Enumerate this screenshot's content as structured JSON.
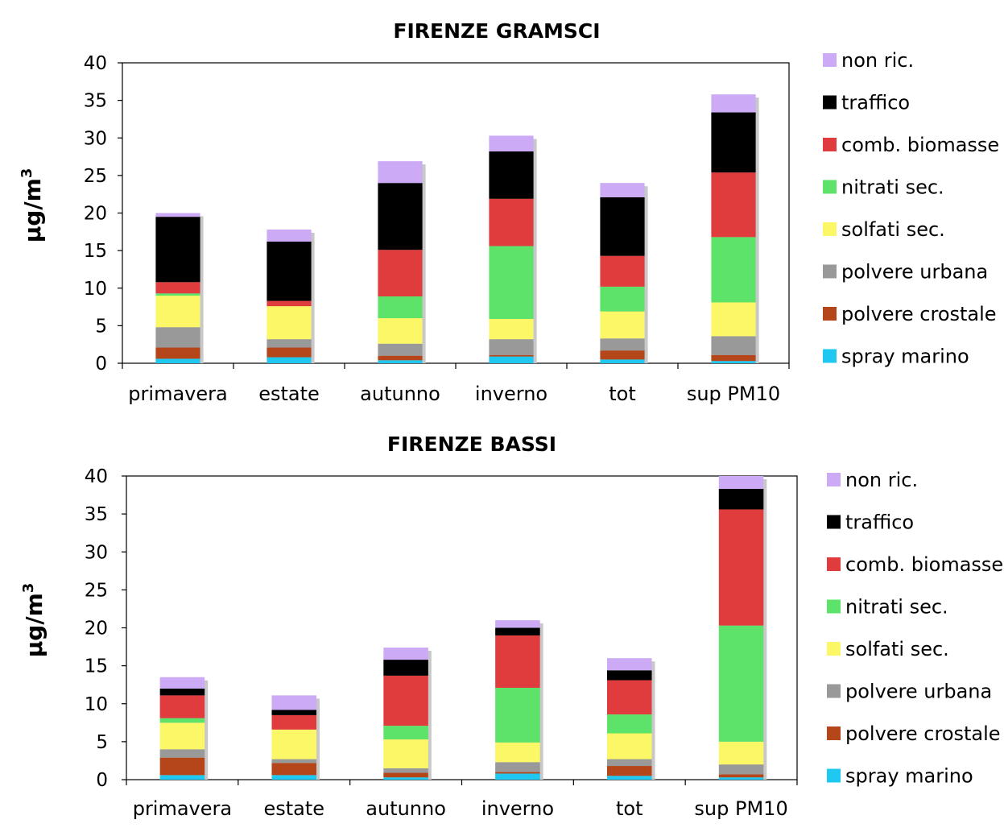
{
  "chart_data": [
    {
      "type": "bar",
      "stacked": true,
      "title": "FIRENZE GRAMSCI",
      "ylabel": "µg/m³",
      "ylim": [
        0,
        40
      ],
      "yticks": [
        0,
        5,
        10,
        15,
        20,
        25,
        30,
        35,
        40
      ],
      "grid": false,
      "legend": "right",
      "categories": [
        "primavera",
        "estate",
        "autunno",
        "inverno",
        "tot",
        "sup PM10"
      ],
      "series": [
        {
          "name": "spray marino",
          "color": "#1ec8f0",
          "values": [
            0.6,
            0.8,
            0.4,
            0.9,
            0.5,
            0.3
          ]
        },
        {
          "name": "polvere crostale",
          "color": "#b5461a",
          "values": [
            1.5,
            1.3,
            0.6,
            0.2,
            1.2,
            0.8
          ]
        },
        {
          "name": "polvere urbana",
          "color": "#999999",
          "values": [
            2.7,
            1.1,
            1.6,
            2.1,
            1.6,
            2.5
          ]
        },
        {
          "name": "solfati sec.",
          "color": "#fbf766",
          "values": [
            4.2,
            4.4,
            3.4,
            2.7,
            3.6,
            4.5
          ]
        },
        {
          "name": "nitrati sec.",
          "color": "#5ee36a",
          "values": [
            0.3,
            0.0,
            2.9,
            9.7,
            3.3,
            8.7
          ]
        },
        {
          "name": "comb. biomasse",
          "color": "#e03c3e",
          "values": [
            1.5,
            0.7,
            6.2,
            6.3,
            4.1,
            8.6
          ]
        },
        {
          "name": "traffico",
          "color": "#000000",
          "values": [
            8.7,
            7.9,
            8.9,
            6.3,
            7.8,
            8.0
          ]
        },
        {
          "name": "non ric.",
          "color": "#ccaaf6",
          "values": [
            0.5,
            1.6,
            2.9,
            2.1,
            1.9,
            2.4
          ]
        }
      ]
    },
    {
      "type": "bar",
      "stacked": true,
      "title": "FIRENZE BASSI",
      "ylabel": "µg/m³",
      "ylim": [
        0,
        40
      ],
      "yticks": [
        0,
        5,
        10,
        15,
        20,
        25,
        30,
        35,
        40
      ],
      "grid": false,
      "legend": "right",
      "categories": [
        "primavera",
        "estate",
        "autunno",
        "inverno",
        "tot",
        "sup PM10"
      ],
      "series": [
        {
          "name": "spray marino",
          "color": "#1ec8f0",
          "values": [
            0.6,
            0.6,
            0.3,
            0.8,
            0.5,
            0.3
          ]
        },
        {
          "name": "polvere crostale",
          "color": "#b5461a",
          "values": [
            2.3,
            1.6,
            0.6,
            0.2,
            1.3,
            0.4
          ]
        },
        {
          "name": "polvere urbana",
          "color": "#999999",
          "values": [
            1.1,
            0.5,
            0.6,
            1.3,
            0.9,
            1.3
          ]
        },
        {
          "name": "solfati sec.",
          "color": "#fbf766",
          "values": [
            3.5,
            3.9,
            3.8,
            2.6,
            3.4,
            3.0
          ]
        },
        {
          "name": "nitrati sec.",
          "color": "#5ee36a",
          "values": [
            0.6,
            0.0,
            1.8,
            7.2,
            2.5,
            15.3
          ]
        },
        {
          "name": "comb. biomasse",
          "color": "#e03c3e",
          "values": [
            3.0,
            1.9,
            6.6,
            6.9,
            4.5,
            15.3
          ]
        },
        {
          "name": "traffico",
          "color": "#000000",
          "values": [
            0.9,
            0.7,
            2.1,
            1.0,
            1.3,
            2.7
          ]
        },
        {
          "name": "non ric.",
          "color": "#ccaaf6",
          "values": [
            1.5,
            1.9,
            1.6,
            1.0,
            1.6,
            1.8
          ]
        }
      ]
    }
  ]
}
